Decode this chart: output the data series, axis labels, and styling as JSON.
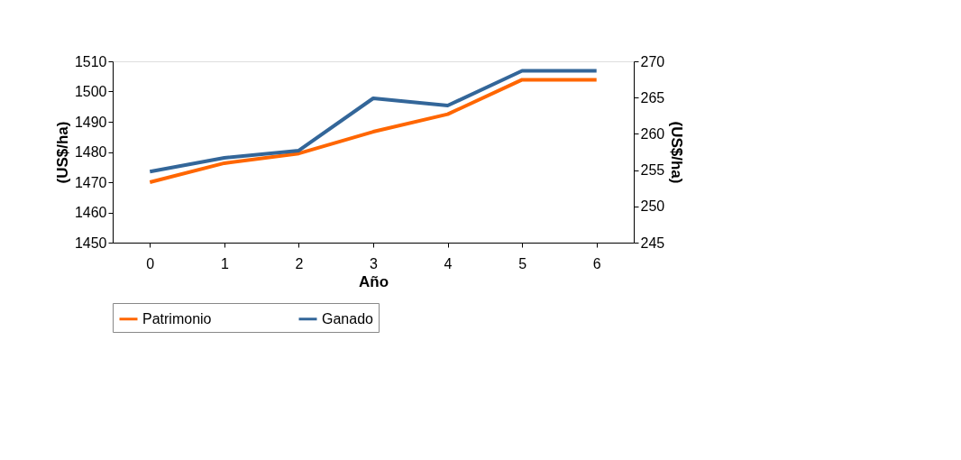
{
  "chart_data": {
    "type": "line",
    "xlabel": "Año",
    "ylabel": "(US$/ha)",
    "y2label": "(US$/ha)",
    "categories": [
      "0",
      "1",
      "2",
      "3",
      "4",
      "5",
      "6"
    ],
    "series": [
      {
        "name": "Patrimonio",
        "color": "#ff6600",
        "values": [
          1470,
          1476.3,
          1479.5,
          1486.7,
          1492.5,
          1503.9,
          1503.9
        ]
      },
      {
        "name": "Ganado",
        "color": "#336699",
        "axis": "y2",
        "values": [
          254.8,
          256.7,
          257.7,
          264.9,
          263.9,
          268.7,
          268.7
        ]
      }
    ],
    "ylim": [
      1450,
      1510
    ],
    "yticks": [
      1450,
      1460,
      1470,
      1480,
      1490,
      1500,
      1510
    ],
    "y2lim": [
      245,
      270
    ],
    "y2ticks": [
      245,
      250,
      255,
      260,
      265,
      270
    ],
    "legend": "bottom",
    "grid": false,
    "marker": "none",
    "line_style": "solid"
  }
}
